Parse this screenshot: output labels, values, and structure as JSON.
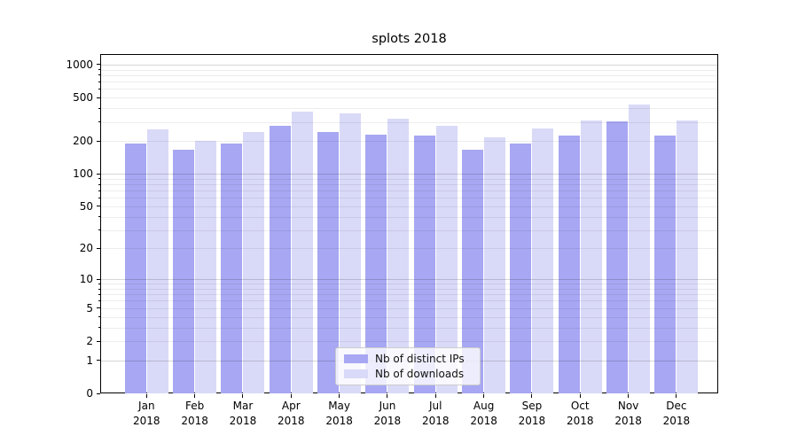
{
  "chart_data": {
    "type": "bar",
    "title": "splots 2018",
    "xlabel": "",
    "ylabel": "",
    "categories": [
      "Jan 2018",
      "Feb 2018",
      "Mar 2018",
      "Apr 2018",
      "May 2018",
      "Jun 2018",
      "Jul 2018",
      "Aug 2018",
      "Sep 2018",
      "Oct 2018",
      "Nov 2018",
      "Dec 2018"
    ],
    "series": [
      {
        "name": "Nb of distinct IPs",
        "color": "#a7a7f3",
        "values": [
          191,
          167,
          189,
          274,
          242,
          229,
          225,
          167,
          191,
          225,
          303,
          225
        ]
      },
      {
        "name": "Nb of downloads",
        "color": "#d9d9f8",
        "values": [
          256,
          201,
          241,
          373,
          360,
          320,
          277,
          217,
          261,
          309,
          434,
          309
        ]
      }
    ],
    "yscale": "log1p",
    "ylim": [
      0,
      1250
    ],
    "yticks": [
      0,
      1,
      2,
      5,
      10,
      20,
      50,
      100,
      200,
      500,
      1000
    ],
    "grid": true,
    "grid_major_values": [
      1,
      10,
      100,
      1000
    ],
    "legend_position": "lower-center"
  }
}
